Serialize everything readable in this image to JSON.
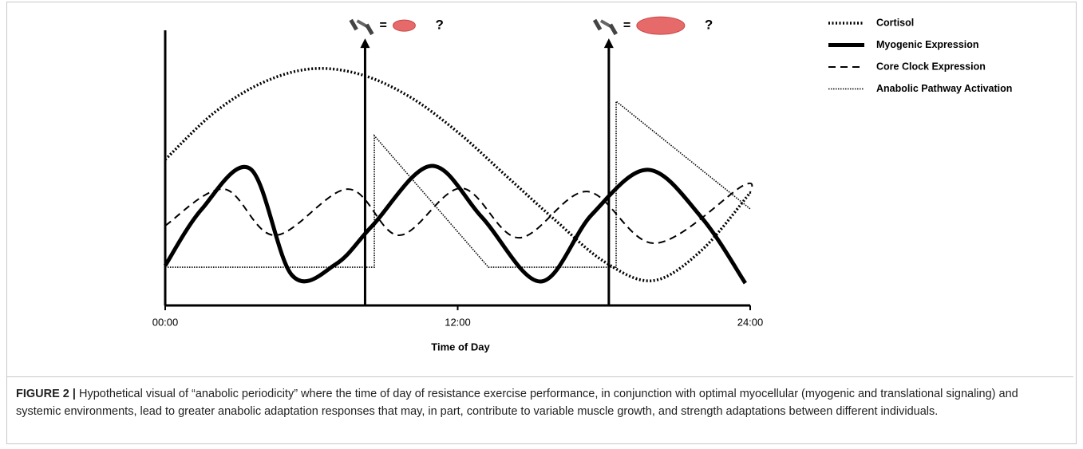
{
  "chart_data": {
    "type": "line",
    "x_label": "Time of Day",
    "xlim": [
      0,
      24
    ],
    "xticks": [
      {
        "value": 0,
        "label": "00:00"
      },
      {
        "value": 12,
        "label": "12:00"
      },
      {
        "value": 24,
        "label": "24:00"
      }
    ],
    "ylim": [
      0,
      100
    ],
    "legend": "top-right",
    "series": [
      {
        "name": "Cortisol",
        "color": "#000000",
        "width": 3.5,
        "dash": "2 2.5",
        "smooth": true,
        "x": [
          0,
          2,
          4,
          6,
          8,
          10,
          12,
          14,
          16,
          18,
          20,
          22,
          24
        ],
        "values": [
          53,
          70,
          81,
          86,
          84,
          76,
          63,
          47,
          31,
          16,
          9,
          20,
          41
        ]
      },
      {
        "name": "Myogenic Expression",
        "color": "#000000",
        "width": 5,
        "dash": "none",
        "smooth": true,
        "x": [
          0,
          1.5,
          3.5,
          5.2,
          7,
          8.5,
          10.9,
          13,
          15.4,
          17.5,
          19.8,
          22,
          23.8
        ],
        "values": [
          14.5,
          35,
          49.6,
          11,
          15,
          29,
          50.7,
          32,
          8.7,
          33,
          49.3,
          32,
          8.1
        ]
      },
      {
        "name": "Core Clock Expression",
        "color": "#000000",
        "width": 2,
        "dash": "9 6",
        "smooth": true,
        "x": [
          0,
          2.4,
          4.5,
          7.5,
          9.6,
          12.15,
          14.5,
          17.3,
          20.1,
          23.7,
          24
        ],
        "values": [
          29,
          42.3,
          25.5,
          42.3,
          25.5,
          42.6,
          24.6,
          41.4,
          22.6,
          43.5,
          40.6
        ]
      },
      {
        "name": "Anabolic Pathway Activation",
        "color": "#000000",
        "width": 1.6,
        "dash": "1.5 1.5",
        "smooth": false,
        "x": [
          0,
          8.58,
          8.58,
          13.26,
          18.5,
          18.5,
          24
        ],
        "values": [
          13.9,
          13.9,
          61.7,
          13.9,
          13.9,
          74.2,
          35.1
        ]
      }
    ],
    "annotations": [
      {
        "x": 8.2,
        "y": 96.5,
        "equals": "=",
        "question": "?"
      },
      {
        "x": 18.2,
        "y": 96.5,
        "equals": "=",
        "question": "?"
      }
    ]
  },
  "figure": {
    "label": "FIGURE 2 |",
    "caption": "Hypothetical visual of “anabolic periodicity” where the time of day of resistance exercise performance, in conjunction with optimal myocellular (myogenic and translational signaling) and systemic environments, lead to greater anabolic adaptation responses that may, in part, contribute to variable muscle growth, and strength adaptations between different individuals."
  }
}
